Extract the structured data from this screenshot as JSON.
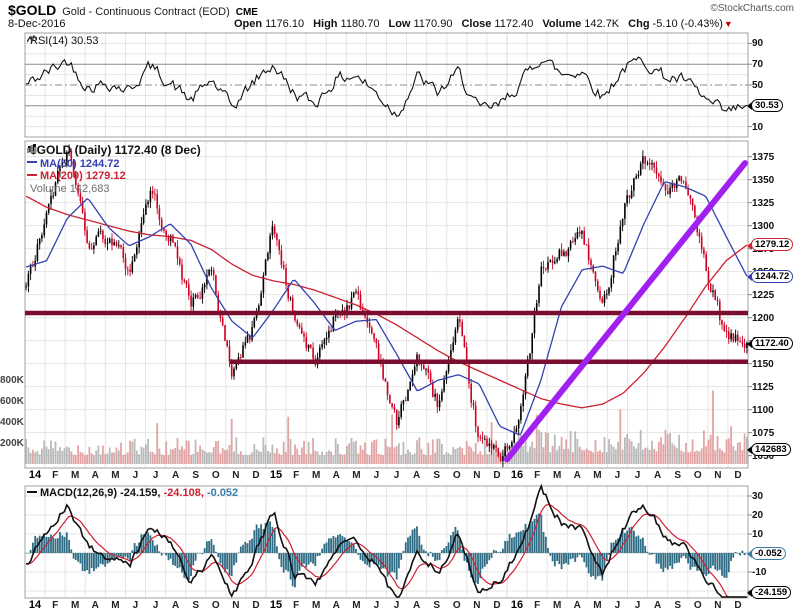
{
  "header": {
    "symbol": "$GOLD",
    "name": "Gold - Continuous Contract (EOD)",
    "exchange": "CME",
    "copyright": "©StockCharts.com",
    "date": "8-Dec-2016",
    "quote": [
      {
        "label": "Open",
        "value": "1176.10"
      },
      {
        "label": "High",
        "value": "1180.70"
      },
      {
        "label": "Low",
        "value": "1170.90"
      },
      {
        "label": "Close",
        "value": "1172.40"
      },
      {
        "label": "Volume",
        "value": "142.7K"
      },
      {
        "label": "Chg",
        "value": "-5.10 (-0.43%)"
      }
    ]
  },
  "rsi": {
    "legend": "RSI(14) 30.53",
    "ticks": [
      90,
      70,
      50,
      30,
      10
    ],
    "tag": "30.53"
  },
  "main": {
    "legend_title": "$GOLD (Daily) 1172.40 (8 Dec)",
    "legend_ma50": "MA(50) 1244.72",
    "legend_ma200": "MA(200) 1279.12",
    "legend_volume": "Volume 142,683",
    "price_ticks": [
      1375,
      1350,
      1325,
      1300,
      1275,
      1250,
      1225,
      1200,
      1175,
      1150,
      1125,
      1100,
      1075,
      1050
    ],
    "volume_ticks": [
      "800K",
      "600K",
      "400K",
      "200K"
    ],
    "tag_ma200": "1279.12",
    "tag_ma50": "1244.72",
    "tag_close": "1172.40",
    "tag_volume": "142683"
  },
  "macd": {
    "legend_prefix": "MACD(12,26,9)",
    "v_macd": "-24.159,",
    "v_signal": "-24.108,",
    "v_hist": "-0.052",
    "ticks": [
      30,
      20,
      10,
      -10,
      -20
    ],
    "tag_hist": "-0.052",
    "tag_macd": "-24.159"
  },
  "x_axis": {
    "months": [
      "14",
      "F",
      "M",
      "A",
      "M",
      "J",
      "J",
      "A",
      "S",
      "O",
      "N",
      "D",
      "15",
      "F",
      "M",
      "A",
      "M",
      "J",
      "J",
      "A",
      "S",
      "O",
      "N",
      "D",
      "16",
      "F",
      "M",
      "A",
      "M",
      "J",
      "J",
      "A",
      "S",
      "O",
      "N",
      "D"
    ]
  },
  "colors": {
    "up": "#000000",
    "down": "#cc0022",
    "ma50": "#3342b0",
    "ma200": "#cc2233",
    "maroon": "#7b0e2e",
    "purple": "#a020f0",
    "hist": "#2f6d86",
    "vol_up": "#b3b3b3",
    "vol_down": "#e09a9a",
    "grid": "#e5e5e5",
    "grid_month": "#d8d8d8",
    "band": "#8c8c8c",
    "border": "#a0a0a0"
  },
  "chart_data": {
    "type": "candlestick",
    "title": "$GOLD (Daily) 1172.40 (8 Dec)",
    "x_range_months": [
      "Jan-2014",
      "Dec-2016"
    ],
    "price_ylim": [
      1043,
      1392
    ],
    "rsi_ylim": [
      0,
      100
    ],
    "macd_ylim": [
      -23.7,
      35.3
    ],
    "monthly_close": [
      1232,
      1310,
      1385,
      1286,
      1290,
      1250,
      1338,
      1288,
      1216,
      1248,
      1142,
      1186,
      1302,
      1202,
      1150,
      1204,
      1224,
      1172,
      1082,
      1158,
      1106,
      1188,
      1066,
      1048,
      1092,
      1248,
      1268,
      1292,
      1206,
      1322,
      1375,
      1342,
      1344,
      1252,
      1176,
      1172
    ],
    "ma50_monthly": [
      1255,
      1262,
      1308,
      1330,
      1298,
      1278,
      1288,
      1302,
      1280,
      1232,
      1196,
      1178,
      1208,
      1242,
      1216,
      1186,
      1196,
      1198,
      1160,
      1120,
      1132,
      1138,
      1128,
      1082,
      1072,
      1132,
      1212,
      1252,
      1256,
      1248,
      1302,
      1348,
      1342,
      1332,
      1288,
      1245
    ],
    "ma200_monthly": [
      1332,
      1320,
      1312,
      1306,
      1300,
      1294,
      1290,
      1288,
      1284,
      1274,
      1258,
      1246,
      1240,
      1236,
      1230,
      1222,
      1214,
      1204,
      1192,
      1178,
      1164,
      1152,
      1142,
      1132,
      1122,
      1112,
      1106,
      1102,
      1106,
      1118,
      1140,
      1168,
      1200,
      1234,
      1262,
      1279
    ],
    "rsi_monthly": [
      50,
      62,
      74,
      48,
      52,
      45,
      68,
      52,
      35,
      55,
      28,
      52,
      70,
      42,
      32,
      55,
      60,
      42,
      22,
      58,
      42,
      62,
      25,
      30,
      52,
      78,
      60,
      64,
      38,
      66,
      74,
      58,
      54,
      35,
      22,
      30.5
    ],
    "macd_monthly": [
      -6,
      12,
      26,
      4,
      -2,
      -8,
      14,
      6,
      -16,
      -2,
      -22,
      -4,
      22,
      -10,
      -18,
      2,
      8,
      -6,
      -27,
      2,
      -10,
      10,
      -20,
      -14,
      2,
      32,
      16,
      12,
      -10,
      14,
      26,
      10,
      2,
      -14,
      -28,
      -24.2
    ],
    "volume_spikes_monthK": [
      [
        6.5,
        390
      ],
      [
        10.3,
        430
      ],
      [
        13.1,
        450
      ],
      [
        18.3,
        470
      ],
      [
        23.3,
        400
      ],
      [
        25.5,
        470
      ],
      [
        29.7,
        520
      ],
      [
        34.35,
        700
      ],
      [
        35.2,
        360
      ]
    ],
    "current": {
      "close": 1172.4,
      "ma50": 1244.72,
      "ma200": 1279.12,
      "volume": 142683,
      "rsi": 30.53,
      "macd": -24.159,
      "macd_signal": -24.108,
      "macd_hist": -0.052
    },
    "annotations": {
      "resistance_lines": [
        {
          "price": 1205,
          "from_month": 0,
          "to_month": 36
        },
        {
          "price": 1152,
          "from_month": 10.2,
          "to_month": 36
        }
      ],
      "trendline": {
        "from_month": 24.0,
        "from_price": 1046,
        "to_month": 35.85,
        "to_price": 1368
      }
    }
  }
}
